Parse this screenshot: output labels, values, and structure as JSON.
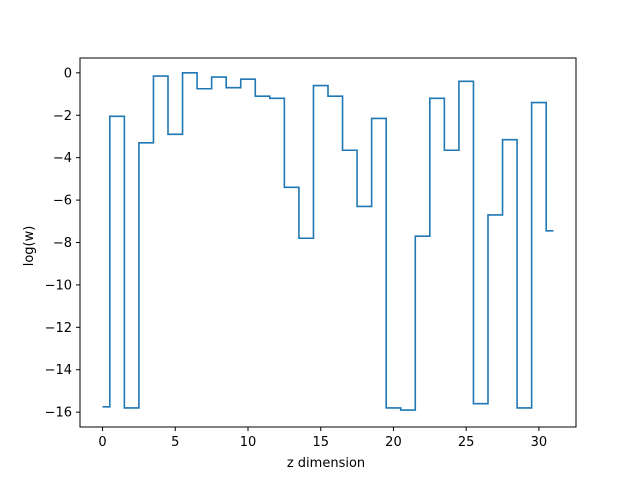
{
  "chart_data": {
    "type": "line",
    "drawstyle": "steps-mid",
    "title": "",
    "xlabel": "z dimension",
    "ylabel": "log(w)",
    "xlim": [
      -1.55,
      32.55
    ],
    "ylim": [
      -16.7,
      0.7
    ],
    "grid": false,
    "xticks": [
      0,
      5,
      10,
      15,
      20,
      25,
      30
    ],
    "xtick_labels": [
      "0",
      "5",
      "10",
      "15",
      "20",
      "25",
      "30"
    ],
    "yticks": [
      0,
      -2,
      -4,
      -6,
      -8,
      -10,
      -12,
      -14,
      -16
    ],
    "ytick_labels": [
      "0",
      "−2",
      "−4",
      "−6",
      "−8",
      "−10",
      "−12",
      "−14",
      "−16"
    ],
    "colors": {
      "line": "#1f77b4",
      "axes": "#000000",
      "background": "#ffffff"
    },
    "series": [
      {
        "x": [
          0,
          1,
          2,
          3,
          4,
          5,
          6,
          7,
          8,
          9,
          10,
          11,
          12,
          13,
          14,
          15,
          16,
          17,
          18,
          19,
          20,
          21,
          22,
          23,
          24,
          25,
          26,
          27,
          28,
          29,
          30,
          31
        ],
        "values": [
          -15.75,
          -2.05,
          -15.8,
          -3.3,
          -0.15,
          -2.9,
          0.0,
          -0.75,
          -0.2,
          -0.7,
          -0.3,
          -1.1,
          -1.2,
          -5.4,
          -7.8,
          -0.6,
          -1.1,
          -3.65,
          -6.3,
          -2.15,
          -15.8,
          -15.9,
          -7.7,
          -1.2,
          -3.65,
          -0.4,
          -15.6,
          -6.7,
          -3.15,
          -15.8,
          -1.4,
          -7.45
        ]
      }
    ]
  }
}
